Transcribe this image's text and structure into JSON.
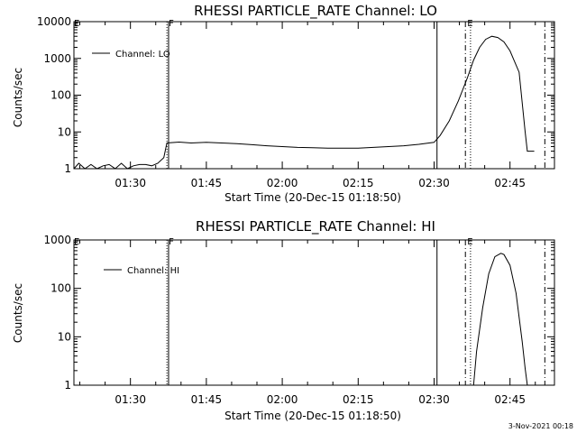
{
  "timestamp": "3-Nov-2021 00:18",
  "chart_data": [
    {
      "type": "line",
      "title": "RHESSI PARTICLE_RATE Channel: LO",
      "xlabel": "Start Time (20-Dec-15 01:18:50)",
      "ylabel": "Counts/sec",
      "yscale": "log",
      "xlim": [
        1.3139,
        2.8964
      ],
      "ylim": [
        1,
        10000
      ],
      "xticks": [
        1.5,
        1.75,
        2.0,
        2.25,
        2.5,
        2.75
      ],
      "xtick_labels": [
        "01:30",
        "01:45",
        "02:00",
        "02:15",
        "02:30",
        "02:45"
      ],
      "yticks": [
        1,
        10,
        100,
        1000,
        10000
      ],
      "ytick_labels": [
        "1",
        "10",
        "100",
        "1000",
        "10000"
      ],
      "legend": [
        "Channel: LO"
      ],
      "series": [
        {
          "name": "Channel: LO",
          "x": [
            1.3139,
            1.33,
            1.35,
            1.37,
            1.39,
            1.41,
            1.43,
            1.45,
            1.47,
            1.49,
            1.51,
            1.53,
            1.55,
            1.57,
            1.59,
            1.61,
            1.62,
            1.66,
            1.7,
            1.75,
            1.8,
            1.85,
            1.9,
            1.95,
            2.0,
            2.05,
            2.1,
            2.15,
            2.2,
            2.25,
            2.3,
            2.35,
            2.4,
            2.45,
            2.5,
            2.52,
            2.55,
            2.58,
            2.61,
            2.63,
            2.65,
            2.67,
            2.69,
            2.71,
            2.73,
            2.75,
            2.78,
            2.8,
            2.8069,
            2.83
          ],
          "values": [
            1,
            1.4,
            1,
            1.3,
            1,
            1.2,
            1.3,
            1,
            1.4,
            1,
            1.2,
            1.3,
            1.3,
            1.2,
            1.4,
            2,
            5,
            5.3,
            5,
            5.2,
            5,
            4.8,
            4.5,
            4.2,
            4,
            3.8,
            3.7,
            3.6,
            3.6,
            3.6,
            3.8,
            4,
            4.2,
            4.6,
            5.2,
            8,
            20,
            70,
            300,
            900,
            2000,
            3300,
            4000,
            3700,
            2800,
            1600,
            420,
            10,
            3,
            3
          ]
        }
      ],
      "vlines": [
        {
          "x": 1.6201,
          "style": "dotted",
          "label": "F"
        },
        {
          "x": 1.6256,
          "style": "solid",
          "label": ""
        },
        {
          "x": 2.5096,
          "style": "solid",
          "label": ""
        },
        {
          "x": 2.6031,
          "style": "dashdot",
          "label": "E"
        },
        {
          "x": 2.62,
          "style": "dotted",
          "label": ""
        },
        {
          "x": 2.8647,
          "style": "dashdot",
          "label": ""
        }
      ],
      "corner_marker": "E"
    },
    {
      "type": "line",
      "title": "RHESSI PARTICLE_RATE Channel: HI",
      "xlabel": "Start Time (20-Dec-15 01:18:50)",
      "ylabel": "Counts/sec",
      "yscale": "log",
      "xlim": [
        1.3139,
        2.8964
      ],
      "ylim": [
        1,
        1000
      ],
      "xticks": [
        1.5,
        1.75,
        2.0,
        2.25,
        2.5,
        2.75
      ],
      "xtick_labels": [
        "01:30",
        "01:45",
        "02:00",
        "02:15",
        "02:30",
        "02:45"
      ],
      "yticks": [
        1,
        10,
        100,
        1000
      ],
      "ytick_labels": [
        "1",
        "10",
        "100",
        "1000"
      ],
      "legend": [
        "Channel: HI"
      ],
      "series": [
        {
          "name": "Channel: HI",
          "x": [
            2.63,
            2.64,
            2.66,
            2.68,
            2.7,
            2.72,
            2.73,
            2.75,
            2.77,
            2.79,
            2.8,
            2.807
          ],
          "values": [
            1,
            5,
            40,
            200,
            450,
            530,
            500,
            300,
            80,
            8,
            2.2,
            1
          ]
        }
      ],
      "vlines": [
        {
          "x": 1.6201,
          "style": "dotted",
          "label": "F"
        },
        {
          "x": 1.6256,
          "style": "solid",
          "label": ""
        },
        {
          "x": 2.5096,
          "style": "solid",
          "label": ""
        },
        {
          "x": 2.6031,
          "style": "dashdot",
          "label": "E"
        },
        {
          "x": 2.62,
          "style": "dotted",
          "label": ""
        },
        {
          "x": 2.8647,
          "style": "dashdot",
          "label": ""
        }
      ],
      "corner_marker": "E"
    }
  ]
}
